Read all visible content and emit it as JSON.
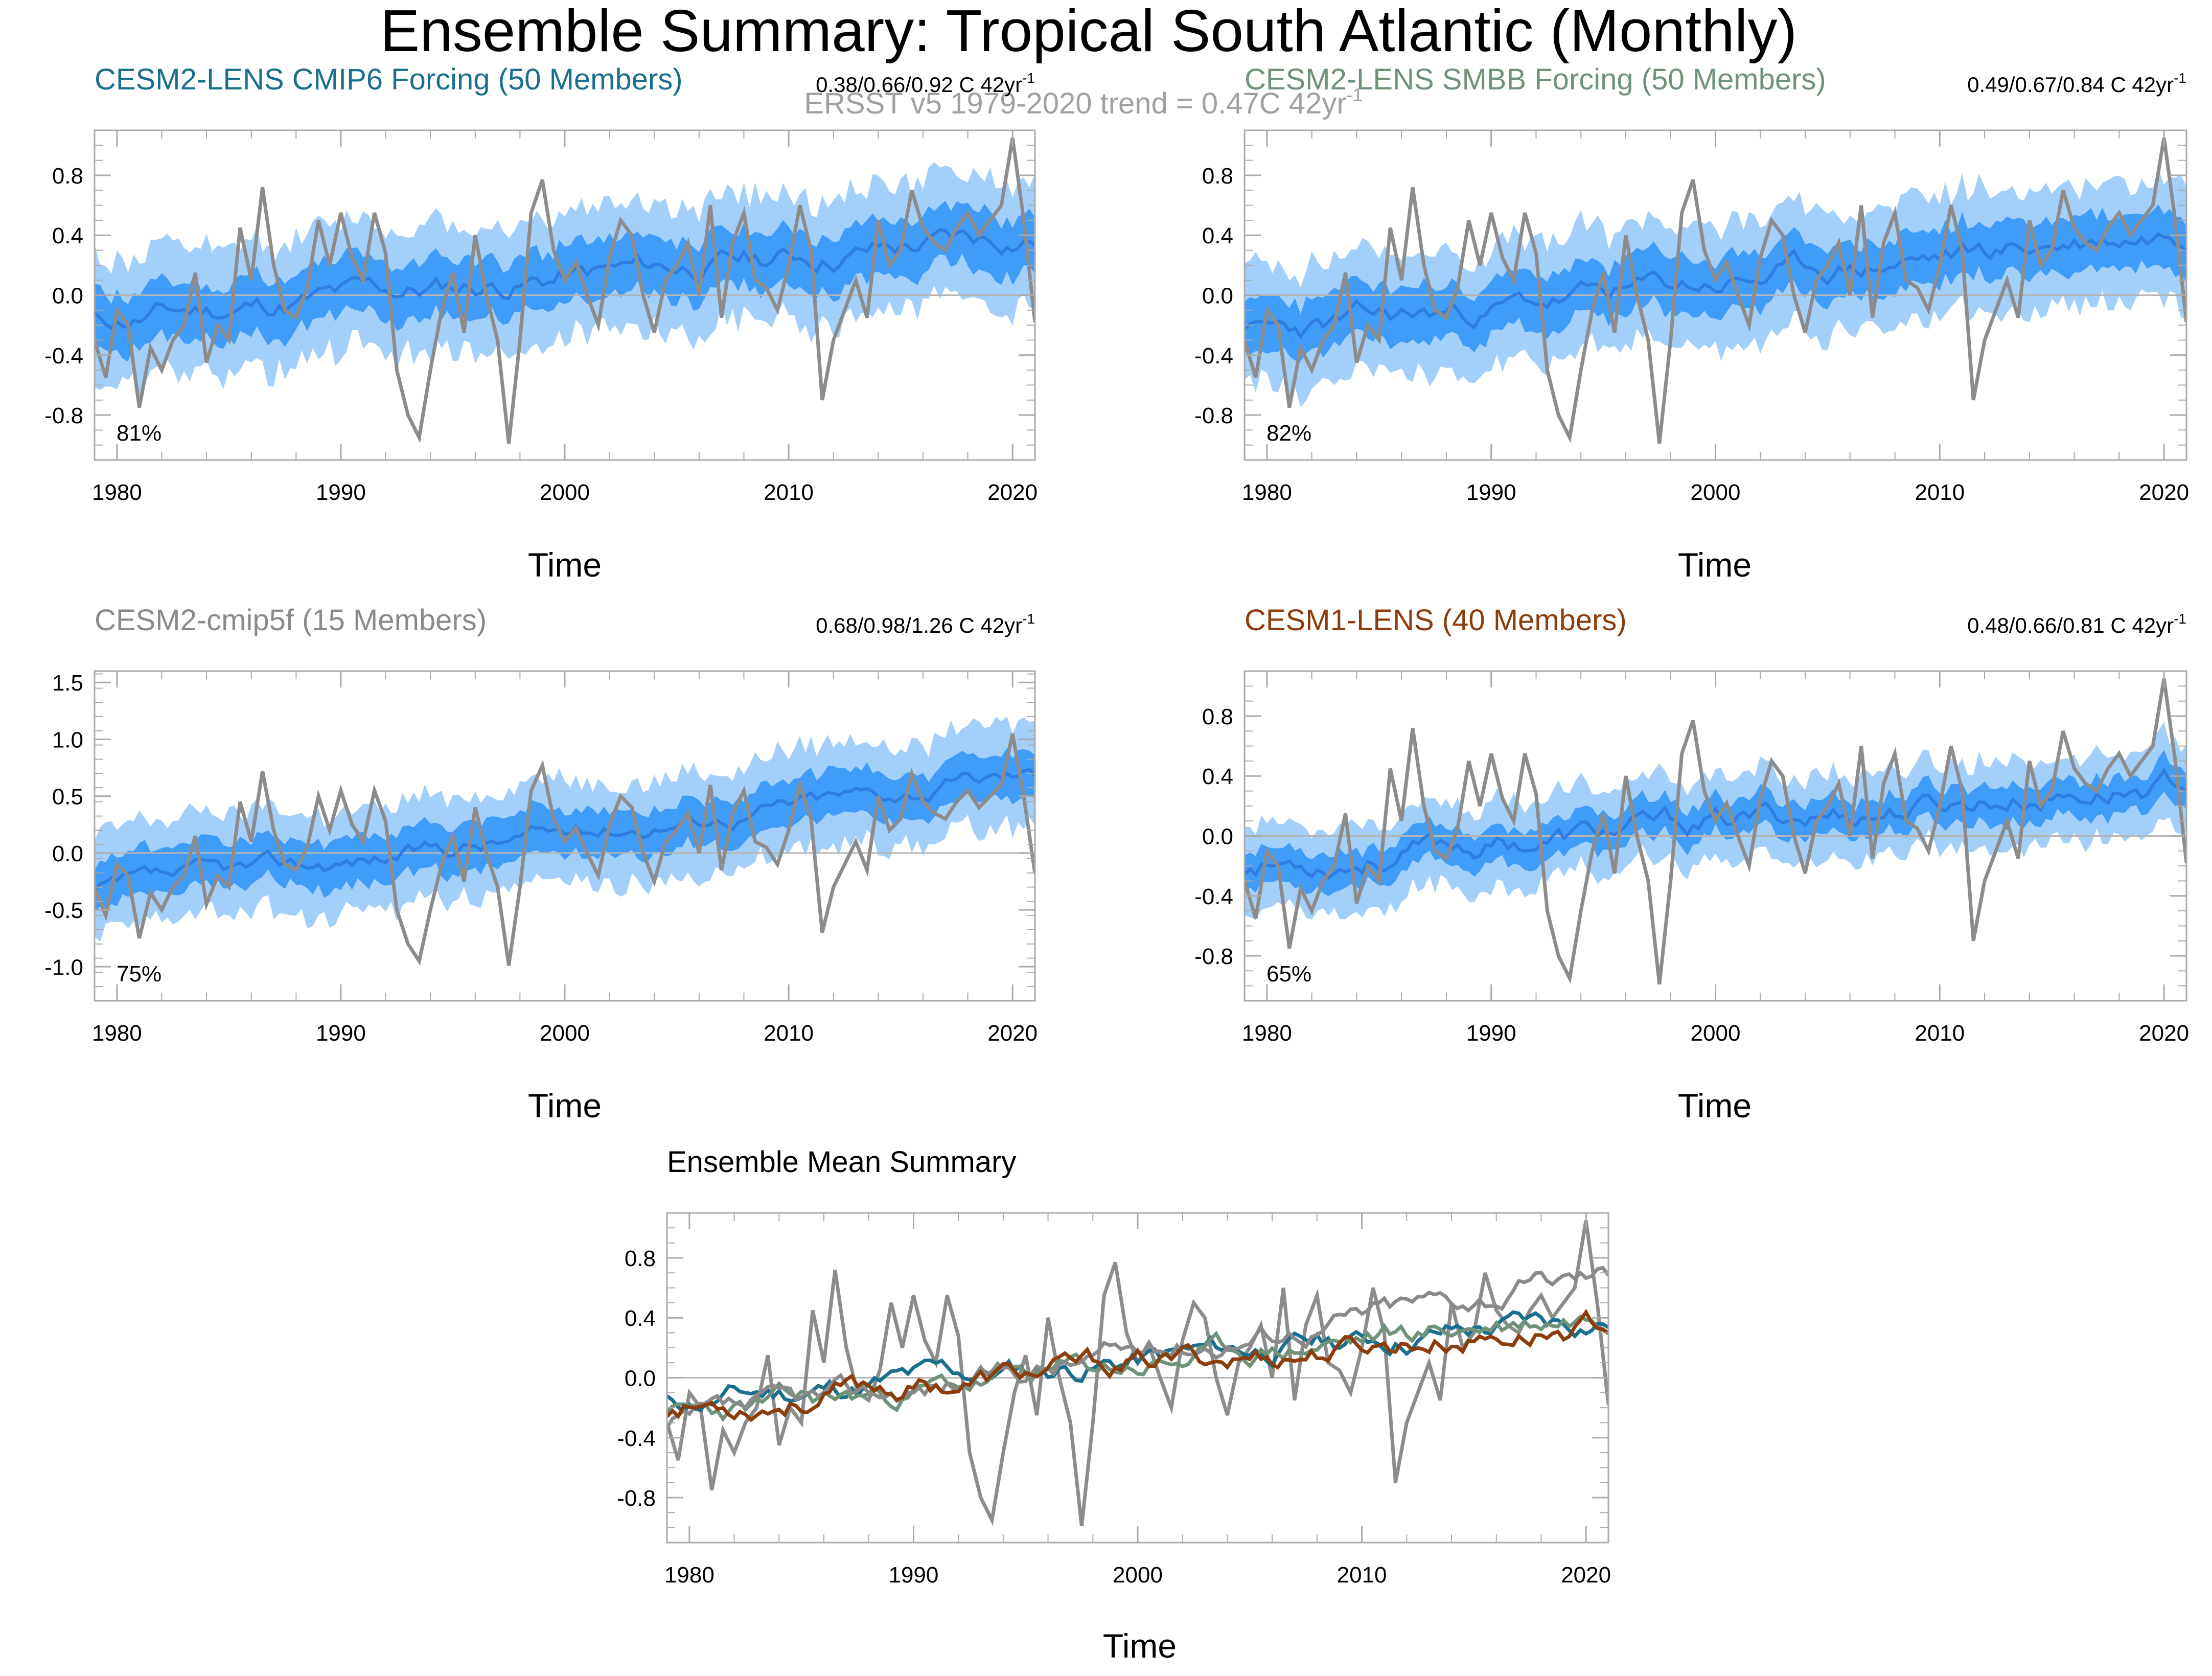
{
  "figure": {
    "title": "Ensemble Summary: Tropical South Atlantic (Monthly)",
    "subtitle": "ERSST v5 1979-2020 trend = 0.47C 42yr",
    "subtitle_sup": "-1"
  },
  "colors": {
    "obs": "#8c8c8c",
    "range_band": "#a3d0fb",
    "iqr_band": "#3f9cf8",
    "ens_mean": "#2f7de1",
    "zero_line": "#b5b5b5",
    "axis": "#aaaaaa",
    "cmip6": "#1a6f8f",
    "smbb": "#6f9279",
    "cmip5f": "#8a8a8a",
    "cesm1": "#8b3d0b"
  },
  "chart_data": [
    {
      "id": "cmip6",
      "type": "line",
      "title": "CESM2-LENS CMIP6 Forcing (50 Members)",
      "title_color": "#1a6f8f",
      "trend_label": "0.38/0.66/0.92 C 42yr",
      "trend_sup": "-1",
      "pct_label": "81%",
      "xlabel": "Time",
      "xlim": [
        1979,
        2021
      ],
      "ylim": [
        -1.1,
        1.1
      ],
      "yticks": [
        -0.8,
        -0.4,
        0.0,
        0.4,
        0.8
      ],
      "ytick_labels": [
        "-0.8",
        "-0.4",
        "0.0",
        "0.4",
        "0.8"
      ],
      "xticks": [
        1980,
        1990,
        2000,
        2010,
        2020
      ],
      "xtick_labels": [
        "1980",
        "1990",
        "2000",
        "2010",
        "2020"
      ],
      "mean_start": -0.17,
      "mean_end": 0.4,
      "iqr_half": 0.19,
      "spread_half": 0.42,
      "noise_seed": 11
    },
    {
      "id": "smbb",
      "type": "line",
      "title": "CESM2-LENS SMBB Forcing (50 Members)",
      "title_color": "#6f9279",
      "trend_label": "0.49/0.67/0.84 C 42yr",
      "trend_sup": "-1",
      "pct_label": "82%",
      "xlabel": "Time",
      "xlim": [
        1979,
        2021
      ],
      "ylim": [
        -1.1,
        1.1
      ],
      "yticks": [
        -0.8,
        -0.4,
        0.0,
        0.4,
        0.8
      ],
      "ytick_labels": [
        "-0.8",
        "-0.4",
        "0.0",
        "0.4",
        "0.8"
      ],
      "xticks": [
        1980,
        1990,
        2000,
        2010,
        2020
      ],
      "xtick_labels": [
        "1980",
        "1990",
        "2000",
        "2010",
        "2020"
      ],
      "mean_start": -0.28,
      "mean_end": 0.44,
      "iqr_half": 0.18,
      "spread_half": 0.4,
      "noise_seed": 23
    },
    {
      "id": "cmip5f",
      "type": "line",
      "title": "CESM2-cmip5f (15 Members)",
      "title_color": "#8a8a8a",
      "trend_label": "0.68/0.98/1.26 C 42yr",
      "trend_sup": "-1",
      "pct_label": "75%",
      "xlabel": "Time",
      "xlim": [
        1979,
        2021
      ],
      "ylim": [
        -1.3,
        1.6
      ],
      "yticks": [
        -1.0,
        -0.5,
        0.0,
        0.5,
        1.0,
        1.5
      ],
      "ytick_labels": [
        "-1.0",
        "-0.5",
        "0.0",
        "0.5",
        "1.0",
        "1.5"
      ],
      "xticks": [
        1980,
        1990,
        2000,
        2010,
        2020
      ],
      "xtick_labels": [
        "1980",
        "1990",
        "2000",
        "2010",
        "2020"
      ],
      "mean_start": -0.35,
      "mean_end": 0.7,
      "iqr_half": 0.2,
      "spread_half": 0.45,
      "noise_seed": 37
    },
    {
      "id": "cesm1",
      "type": "line",
      "title": "CESM1-LENS (40 Members)",
      "title_color": "#8b3d0b",
      "trend_label": "0.48/0.66/0.81 C 42yr",
      "trend_sup": "-1",
      "pct_label": "65%",
      "xlabel": "Time",
      "xlim": [
        1979,
        2021
      ],
      "ylim": [
        -1.1,
        1.1
      ],
      "yticks": [
        -0.8,
        -0.4,
        0.0,
        0.4,
        0.8
      ],
      "ytick_labels": [
        "-0.8",
        "-0.4",
        "0.0",
        "0.4",
        "0.8"
      ],
      "xticks": [
        1980,
        1990,
        2000,
        2010,
        2020
      ],
      "xtick_labels": [
        "1980",
        "1990",
        "2000",
        "2010",
        "2020"
      ],
      "mean_start": -0.2,
      "mean_end": 0.36,
      "iqr_half": 0.12,
      "spread_half": 0.28,
      "noise_seed": 53
    },
    {
      "id": "summary",
      "type": "line",
      "title": "Ensemble Mean Summary",
      "title_color": "#000000",
      "xlabel": "Time",
      "xlim": [
        1979,
        2021
      ],
      "ylim": [
        -1.1,
        1.1
      ],
      "yticks": [
        -0.8,
        -0.4,
        0.0,
        0.4,
        0.8
      ],
      "ytick_labels": [
        "-0.8",
        "-0.4",
        "0.0",
        "0.4",
        "0.8"
      ],
      "xticks": [
        1980,
        1990,
        2000,
        2010,
        2020
      ],
      "xtick_labels": [
        "1980",
        "1990",
        "2000",
        "2010",
        "2020"
      ],
      "series": [
        {
          "name": "CESM2-LENS CMIP6 Forcing",
          "color": "#1a6f8f",
          "start": -0.17,
          "end": 0.4,
          "seed": 11
        },
        {
          "name": "CESM2-LENS SMBB Forcing",
          "color": "#6f9279",
          "start": -0.28,
          "end": 0.44,
          "seed": 23
        },
        {
          "name": "CESM2-cmip5f",
          "color": "#8a8a8a",
          "start": -0.35,
          "end": 0.7,
          "seed": 37
        },
        {
          "name": "CESM1-LENS",
          "color": "#8b3d0b",
          "start": -0.2,
          "end": 0.36,
          "seed": 53
        }
      ]
    }
  ],
  "obs_series": {
    "name": "ERSST v5",
    "start_year": 1979,
    "step_years": 0.5,
    "values": [
      -0.3,
      -0.55,
      -0.1,
      -0.2,
      -0.75,
      -0.35,
      -0.5,
      -0.3,
      -0.2,
      0.15,
      -0.45,
      -0.2,
      -0.3,
      0.45,
      0.1,
      0.72,
      0.2,
      -0.1,
      -0.15,
      0.05,
      0.5,
      0.2,
      0.55,
      0.25,
      0.1,
      0.55,
      0.28,
      -0.5,
      -0.8,
      -0.95,
      -0.5,
      -0.1,
      0.15,
      -0.25,
      0.4,
      0.0,
      -0.3,
      -0.99,
      -0.3,
      0.55,
      0.77,
      0.3,
      0.1,
      0.22,
      0.0,
      -0.2,
      0.25,
      0.5,
      0.4,
      0.0,
      -0.25,
      0.1,
      0.2,
      0.35,
      0.0,
      0.6,
      -0.15,
      0.35,
      0.55,
      0.1,
      0.05,
      -0.1,
      0.2,
      0.6,
      0.3,
      -0.7,
      -0.3,
      -0.1,
      0.1,
      -0.15,
      0.5,
      0.2,
      0.3,
      0.7,
      0.45,
      0.35,
      0.3,
      0.45,
      0.55,
      0.4,
      0.5,
      0.6,
      1.05,
      0.5,
      -0.18
    ]
  }
}
